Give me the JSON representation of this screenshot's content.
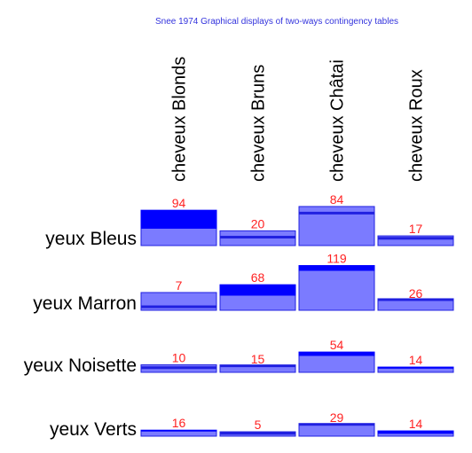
{
  "chart_data": {
    "type": "bar",
    "title": "Snee 1974 Graphical displays of two-ways contingency tables",
    "columns": [
      "cheveux Blonds",
      "cheveux Bruns",
      "cheveux Châtai",
      "cheveux Roux"
    ],
    "rows": [
      "yeux Bleus",
      "yeux Marron",
      "yeux Noisette",
      "yeux Verts"
    ],
    "values": [
      [
        94,
        20,
        84,
        17
      ],
      [
        7,
        68,
        119,
        26
      ],
      [
        10,
        15,
        54,
        14
      ],
      [
        16,
        5,
        29,
        14
      ]
    ],
    "expected_shown": true,
    "legend": "none"
  },
  "colors": {
    "excess": "#0000ff",
    "expected": "#7b7bff",
    "border": "#2020e0",
    "values": "#ff2222",
    "title": "#3333dd"
  }
}
